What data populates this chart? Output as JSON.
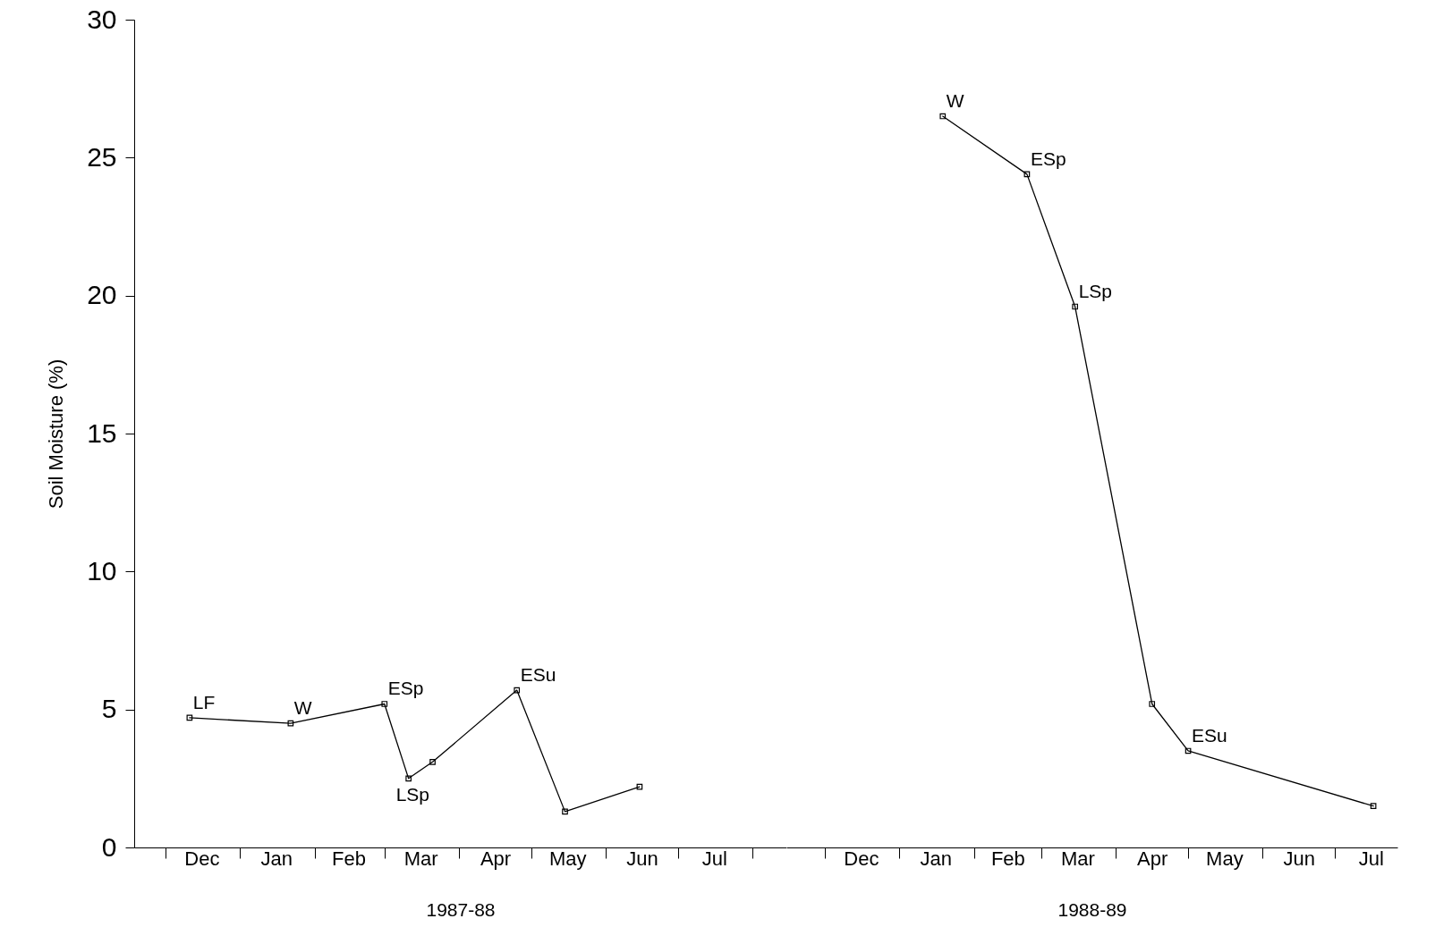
{
  "chart_data": [
    {
      "type": "line",
      "ylabel": "Soil Moisture (%)",
      "xlabel": "1987-88",
      "xlim": [
        "1987-11-18",
        "1988-08-15"
      ],
      "xticks": [
        {
          "value": "1987-12-01",
          "label": null
        },
        {
          "value": "1987-12-16",
          "label": "Dec"
        },
        {
          "value": "1988-01-01",
          "label": null
        },
        {
          "value": "1988-01-16",
          "label": "Jan"
        },
        {
          "value": "1988-02-01",
          "label": null
        },
        {
          "value": "1988-02-15",
          "label": "Feb"
        },
        {
          "value": "1988-03-01",
          "label": null
        },
        {
          "value": "1988-03-16",
          "label": "Mar"
        },
        {
          "value": "1988-04-01",
          "label": null
        },
        {
          "value": "1988-04-16",
          "label": "Apr"
        },
        {
          "value": "1988-05-01",
          "label": null
        },
        {
          "value": "1988-05-16",
          "label": "May"
        },
        {
          "value": "1988-06-01",
          "label": null
        },
        {
          "value": "1988-06-16",
          "label": "Jun"
        },
        {
          "value": "1988-07-01",
          "label": null
        },
        {
          "value": "1988-07-16",
          "label": "Jul"
        },
        {
          "value": "1988-08-01",
          "label": null
        }
      ],
      "ylim": [
        0,
        30
      ],
      "yticks": [
        0,
        5,
        10,
        15,
        20,
        25,
        30
      ],
      "grid": false,
      "marker": "square",
      "line_style": "solid",
      "series": [
        {
          "color": "#000000",
          "x": [
            "1987-12-11",
            "1988-01-22",
            "1988-03-01",
            "1988-03-11",
            "1988-03-21",
            "1988-04-25",
            "1988-05-15",
            "1988-06-15"
          ],
          "values": [
            4.7,
            4.5,
            5.2,
            2.5,
            3.1,
            5.7,
            1.3,
            2.2
          ]
        }
      ],
      "annotations": [
        {
          "text": "LF",
          "x": "1987-12-11",
          "y": 4.7
        },
        {
          "text": "W",
          "x": "1988-01-22",
          "y": 4.5
        },
        {
          "text": "ESp",
          "x": "1988-03-01",
          "y": 5.2
        },
        {
          "text": "LSp",
          "x": "1988-03-11",
          "y": 2.5
        },
        {
          "text": "ESu",
          "x": "1988-04-25",
          "y": 5.7
        }
      ]
    },
    {
      "type": "line",
      "xlabel": "1988-89",
      "tick_labels": "x",
      "xlim": [
        "1988-11-15",
        "1989-07-27"
      ],
      "xticks": [
        {
          "value": "1988-12-01",
          "label": null
        },
        {
          "value": "1988-12-16",
          "label": "Dec"
        },
        {
          "value": "1989-01-01",
          "label": null
        },
        {
          "value": "1989-01-16",
          "label": "Jan"
        },
        {
          "value": "1989-02-01",
          "label": null
        },
        {
          "value": "1989-02-15",
          "label": "Feb"
        },
        {
          "value": "1989-03-01",
          "label": null
        },
        {
          "value": "1989-03-16",
          "label": "Mar"
        },
        {
          "value": "1989-04-01",
          "label": null
        },
        {
          "value": "1989-04-16",
          "label": "Apr"
        },
        {
          "value": "1989-05-01",
          "label": null
        },
        {
          "value": "1989-05-16",
          "label": "May"
        },
        {
          "value": "1989-06-01",
          "label": null
        },
        {
          "value": "1989-06-16",
          "label": "Jun"
        },
        {
          "value": "1989-07-01",
          "label": null
        },
        {
          "value": "1989-07-16",
          "label": "Jul"
        }
      ],
      "ylim": [
        0,
        30
      ],
      "grid": false,
      "marker": "square",
      "line_style": "solid",
      "series": [
        {
          "color": "#000000",
          "x": [
            "1989-01-19",
            "1989-02-23",
            "1989-03-15",
            "1989-04-16",
            "1989-05-01",
            "1989-07-17"
          ],
          "values": [
            26.5,
            24.4,
            19.6,
            5.2,
            3.5,
            1.5
          ]
        }
      ],
      "annotations": [
        {
          "text": "W",
          "x": "1989-01-19",
          "y": 26.5
        },
        {
          "text": "ESp",
          "x": "1989-02-23",
          "y": 24.4
        },
        {
          "text": "LSp",
          "x": "1989-03-15",
          "y": 19.6
        },
        {
          "text": "ESu",
          "x": "1989-05-01",
          "y": 3.5
        }
      ]
    }
  ]
}
